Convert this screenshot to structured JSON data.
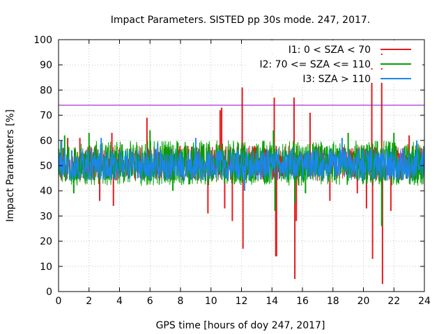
{
  "chart_data": {
    "type": "line",
    "title": "Impact Parameters. SISTED pp 30s mode. 247, 2017.",
    "xlabel": "GPS time [hours of doy 247, 2017]",
    "ylabel": "Impact Parameters [%]",
    "xlim": [
      0,
      24
    ],
    "ylim": [
      0,
      100
    ],
    "xticks": [
      0,
      2,
      4,
      6,
      8,
      10,
      12,
      14,
      16,
      18,
      20,
      22,
      24
    ],
    "yticks": [
      0,
      10,
      20,
      30,
      40,
      50,
      60,
      70,
      80,
      90,
      100
    ],
    "grid": true,
    "legend_position": "top-right",
    "threshold": {
      "value": 74,
      "color": "#9400d3"
    },
    "series": [
      {
        "name": "I1: 0 < SZA < 70",
        "color": "#e41a1c",
        "baseline": 50,
        "noise_low": 44,
        "noise_high": 58,
        "spikes": [
          {
            "x": 0.3,
            "v": 57
          },
          {
            "x": 0.6,
            "v": 61
          },
          {
            "x": 1.4,
            "v": 61
          },
          {
            "x": 2.7,
            "v": 36
          },
          {
            "x": 3.5,
            "v": 63
          },
          {
            "x": 3.6,
            "v": 34
          },
          {
            "x": 5.8,
            "v": 69
          },
          {
            "x": 9.8,
            "v": 31
          },
          {
            "x": 10.6,
            "v": 72
          },
          {
            "x": 10.7,
            "v": 73
          },
          {
            "x": 10.9,
            "v": 33
          },
          {
            "x": 11.4,
            "v": 28
          },
          {
            "x": 12.05,
            "v": 81
          },
          {
            "x": 12.1,
            "v": 17
          },
          {
            "x": 14.15,
            "v": 77
          },
          {
            "x": 14.25,
            "v": 14
          },
          {
            "x": 14.3,
            "v": 14
          },
          {
            "x": 15.45,
            "v": 77
          },
          {
            "x": 15.5,
            "v": 5
          },
          {
            "x": 15.6,
            "v": 28
          },
          {
            "x": 16.5,
            "v": 71
          },
          {
            "x": 17.8,
            "v": 36
          },
          {
            "x": 19.6,
            "v": 39
          },
          {
            "x": 20.2,
            "v": 33
          },
          {
            "x": 20.55,
            "v": 89
          },
          {
            "x": 20.6,
            "v": 13
          },
          {
            "x": 21.2,
            "v": 98
          },
          {
            "x": 21.25,
            "v": 3
          },
          {
            "x": 21.8,
            "v": 32
          },
          {
            "x": 23.0,
            "v": 62
          }
        ]
      },
      {
        "name": "I2: 70 <= SZA <= 110",
        "color": "#00a000",
        "baseline": 50,
        "noise_low": 42,
        "noise_high": 60,
        "spikes": [
          {
            "x": 0.4,
            "v": 62
          },
          {
            "x": 1.0,
            "v": 39
          },
          {
            "x": 2.0,
            "v": 63
          },
          {
            "x": 6.0,
            "v": 64
          },
          {
            "x": 7.5,
            "v": 40
          },
          {
            "x": 14.1,
            "v": 64
          },
          {
            "x": 14.2,
            "v": 32
          },
          {
            "x": 15.5,
            "v": 35
          },
          {
            "x": 16.2,
            "v": 39
          },
          {
            "x": 19.0,
            "v": 63
          },
          {
            "x": 21.2,
            "v": 26
          },
          {
            "x": 22.0,
            "v": 63
          }
        ]
      },
      {
        "name": "I3: SZA > 110",
        "color": "#1c86ee",
        "baseline": 50,
        "noise_low": 44,
        "noise_high": 57,
        "spikes": [
          {
            "x": 0.2,
            "v": 60
          },
          {
            "x": 2.8,
            "v": 61
          },
          {
            "x": 6.5,
            "v": 59
          },
          {
            "x": 9.0,
            "v": 61
          },
          {
            "x": 12.2,
            "v": 40
          },
          {
            "x": 18.6,
            "v": 61
          },
          {
            "x": 23.5,
            "v": 60
          }
        ]
      }
    ]
  }
}
